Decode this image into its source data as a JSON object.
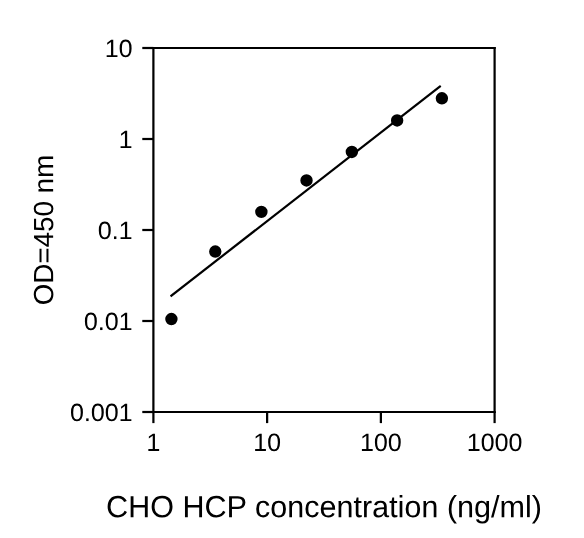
{
  "chart_data": {
    "type": "scatter",
    "xlabel": "CHO HCP concentration (ng/ml)",
    "ylabel": "OD=450 nm",
    "log": "xy",
    "grid": false,
    "legend": false,
    "marker": "circle",
    "x": [
      1.44,
      3.5,
      8.9,
      22.2,
      55.6,
      139,
      344
    ],
    "series": [
      {
        "color": "#000000",
        "values": [
          0.0105,
          0.058,
          0.158,
          0.35,
          0.72,
          1.6,
          2.8
        ]
      },
      {
        "type": "line",
        "color": "#000000",
        "x": [
          1.44,
          330
        ],
        "values": [
          0.019,
          3.76
        ],
        "marker": "none",
        "line_style": "solid"
      }
    ],
    "xlim": [
      1,
      1000
    ],
    "ylim": [
      0.001,
      10
    ],
    "xticks": [
      1,
      10,
      100,
      1000
    ],
    "yticks": [
      0.001,
      0.01,
      0.1,
      1,
      10
    ]
  }
}
